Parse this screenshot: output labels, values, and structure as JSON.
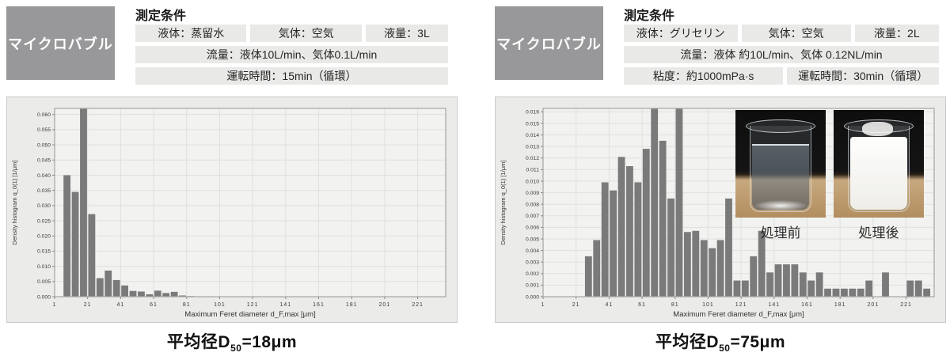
{
  "panels": [
    {
      "badge": "マイクロバブル",
      "conditions_title": "測定条件",
      "rows": {
        "r1c1": "液体：蒸留水",
        "r1c2": "気体：空気",
        "r1c3": "液量：3L",
        "r2c1": "流量：液体10L/min、気体0.1L/min",
        "r3c1": "運転時間：15min（循環）"
      },
      "caption": {
        "prefix": "平均径D",
        "sub": "50",
        "value": "=18μm"
      }
    },
    {
      "badge": "マイクロバブル",
      "conditions_title": "測定条件",
      "rows": {
        "r1c1": "液体：グリセリン",
        "r1c2": "気体：空気",
        "r1c3": "液量：2L",
        "r2c1": "流量：液体 約10L/min、気体 0.12NL/min",
        "r3c1": "粘度：約1000mPa·s",
        "r3c2": "運転時間：30min（循環）"
      },
      "caption": {
        "prefix": "平均径D",
        "sub": "50",
        "value": "=75μm"
      },
      "inset": {
        "before_label": "処理前",
        "after_label": "処理後"
      }
    }
  ],
  "chart_data": [
    {
      "type": "bar",
      "xlabel": "Maximum Feret diameter d_F,max [μm]",
      "ylabel": "Density histogram q_0(1) [1/μm]",
      "xlim": [
        1,
        238
      ],
      "ylim": [
        0,
        0.062
      ],
      "x_ticks": [
        1,
        21,
        41,
        61,
        81,
        101,
        121,
        141,
        161,
        181,
        201,
        221
      ],
      "y_ticks": [
        0.0,
        0.005,
        0.01,
        0.015,
        0.02,
        0.025,
        0.03,
        0.035,
        0.04,
        0.045,
        0.05,
        0.055,
        0.06
      ],
      "y_decimals": 3,
      "bar_width_um": 5,
      "grid": true,
      "legend": false,
      "note": "bar at 16-21 μm is clipped at top of axis (>0.060)",
      "bars": [
        [
          6,
          0.04
        ],
        [
          11,
          0.0345
        ],
        [
          16,
          0.062
        ],
        [
          21,
          0.0272
        ],
        [
          26,
          0.0061
        ],
        [
          31,
          0.0086
        ],
        [
          36,
          0.0055
        ],
        [
          41,
          0.0037
        ],
        [
          46,
          0.0019
        ],
        [
          51,
          0.0017
        ],
        [
          56,
          0.0008
        ],
        [
          61,
          0.002
        ],
        [
          66,
          0.0012
        ],
        [
          71,
          0.0016
        ],
        [
          76,
          0.0004
        ],
        [
          81,
          0.0002
        ]
      ]
    },
    {
      "type": "bar",
      "xlabel": "Maximum Feret diameter d_F,max [μm]",
      "ylabel": "Density histogram q_0(1) [1/μm]",
      "xlim": [
        1,
        238
      ],
      "ylim": [
        0,
        0.0163
      ],
      "x_ticks": [
        1,
        21,
        41,
        61,
        81,
        101,
        121,
        141,
        161,
        181,
        201,
        221
      ],
      "y_ticks": [
        0.0,
        0.001,
        0.002,
        0.003,
        0.004,
        0.005,
        0.006,
        0.007,
        0.008,
        0.009,
        0.01,
        0.011,
        0.012,
        0.013,
        0.014,
        0.015,
        0.016
      ],
      "y_decimals": 3,
      "bar_width_um": 5,
      "grid": true,
      "legend": false,
      "note": "bars at 66-71 μm and 81-86 μm are clipped at top of axis (>0.016)",
      "bars": [
        [
          26,
          0.0035
        ],
        [
          31,
          0.0049
        ],
        [
          36,
          0.0099
        ],
        [
          41,
          0.0092
        ],
        [
          46,
          0.0121
        ],
        [
          51,
          0.0113
        ],
        [
          56,
          0.0099
        ],
        [
          61,
          0.0128
        ],
        [
          66,
          0.0163
        ],
        [
          71,
          0.0135
        ],
        [
          76,
          0.0085
        ],
        [
          81,
          0.0163
        ],
        [
          86,
          0.0056
        ],
        [
          91,
          0.0057
        ],
        [
          96,
          0.0049
        ],
        [
          101,
          0.0042
        ],
        [
          106,
          0.0049
        ],
        [
          111,
          0.0085
        ],
        [
          116,
          0.0014
        ],
        [
          121,
          0.0014
        ],
        [
          126,
          0.0035
        ],
        [
          131,
          0.0057
        ],
        [
          136,
          0.0021
        ],
        [
          141,
          0.0028
        ],
        [
          146,
          0.0028
        ],
        [
          151,
          0.0028
        ],
        [
          156,
          0.0021
        ],
        [
          161,
          0.0014
        ],
        [
          166,
          0.0021
        ],
        [
          171,
          0.0007
        ],
        [
          176,
          0.0007
        ],
        [
          181,
          0.0007
        ],
        [
          186,
          0.0007
        ],
        [
          191,
          0.0007
        ],
        [
          196,
          0.0014
        ],
        [
          206,
          0.0021
        ],
        [
          221,
          0.0014
        ],
        [
          226,
          0.0014
        ],
        [
          231,
          0.0007
        ]
      ]
    }
  ],
  "colors": {
    "badge_bg": "#98989a",
    "cell_bg": "#e9e9e7",
    "panel_bg": "#ebebe9",
    "plot_bg": "#f2f2f1",
    "grid_line": "#e0e0de",
    "bar_fill": "#7a7a7a",
    "axis_line": "#a5a5a3",
    "text": "#222222"
  }
}
